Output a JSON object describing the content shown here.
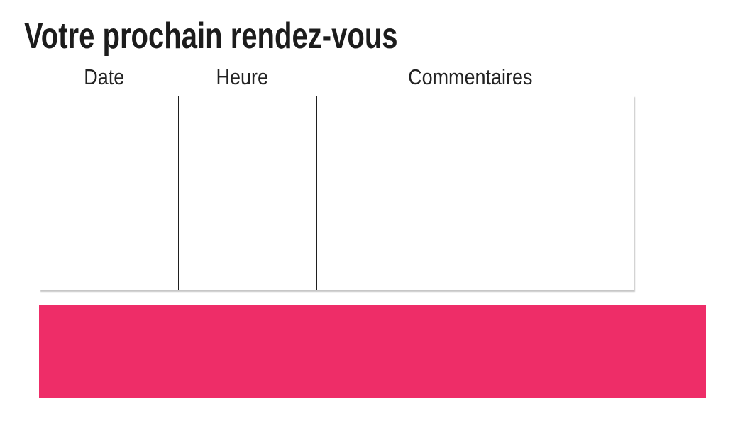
{
  "page": {
    "title": "Votre prochain rendez-vous"
  },
  "appointments_table": {
    "headers": [
      "Date",
      "Heure",
      "Commentaires"
    ],
    "rows": [
      [
        "",
        "",
        ""
      ],
      [
        "",
        "",
        ""
      ],
      [
        "",
        "",
        ""
      ],
      [
        "",
        "",
        ""
      ],
      [
        "",
        "",
        ""
      ]
    ]
  },
  "colors": {
    "accent_pink": "#EE2D68",
    "table_border": "#1F1F1F",
    "text": "#1C1C1C"
  }
}
